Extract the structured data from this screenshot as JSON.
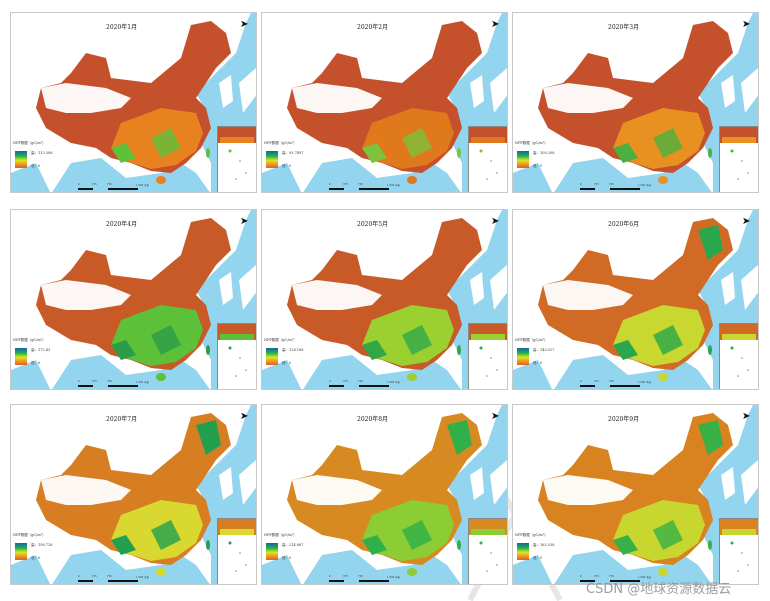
{
  "figure": {
    "type": "monthly NPP map grid",
    "rows": 3,
    "cols": 3
  },
  "legend_common": {
    "title": "NPP数据（gC/m²）",
    "low_label": "低：0",
    "colors": {
      "high": "#1e5fa8",
      "mid_high": "#22b24a",
      "mid": "#d8e820",
      "mid_low": "#f0a020",
      "low": "#c8502c"
    }
  },
  "colors": {
    "sea": "#93d4ef",
    "no_data": "#ffffff",
    "border": "#c8c8c8"
  },
  "panels": [
    {
      "title": "2020年1月",
      "legend_high": "高：113.308",
      "dominant": "#c4502c",
      "south": "#e8821e",
      "green": "#5fc03a"
    },
    {
      "title": "2020年2月",
      "legend_high": "高：93.7497",
      "dominant": "#c4502c",
      "south": "#e0781c",
      "green": "#7cc23a"
    },
    {
      "title": "2020年3月",
      "legend_high": "高：109.208",
      "dominant": "#c4502c",
      "south": "#e89020",
      "green": "#4cb040"
    },
    {
      "title": "2020年4月",
      "legend_high": "高：172.43",
      "dominant": "#c85a28",
      "south": "#5cc038",
      "green": "#2c9c48"
    },
    {
      "title": "2020年5月",
      "legend_high": "高：128.168",
      "dominant": "#c85a28",
      "south": "#9ad030",
      "green": "#30a848"
    },
    {
      "title": "2020年6月",
      "legend_high": "高：143.527",
      "dominant": "#d06a24",
      "south": "#c8d830",
      "green": "#28a84a"
    },
    {
      "title": "2020年7月",
      "legend_high": "高：156.728",
      "dominant": "#d87e22",
      "south": "#d8d830",
      "green": "#22a050"
    },
    {
      "title": "2020年8月",
      "legend_high": "高：214.887",
      "dominant": "#d88a22",
      "south": "#8ccc34",
      "green": "#30b048"
    },
    {
      "title": "2020年9月",
      "legend_high": "高：163.538",
      "dominant": "#d88220",
      "south": "#c8d630",
      "green": "#38b046"
    }
  ],
  "scalebar": {
    "labels": [
      "0",
      "375",
      "750",
      "1,500 千米"
    ]
  },
  "north_arrow": "N",
  "watermark": "CSDN @地球资源数据云"
}
